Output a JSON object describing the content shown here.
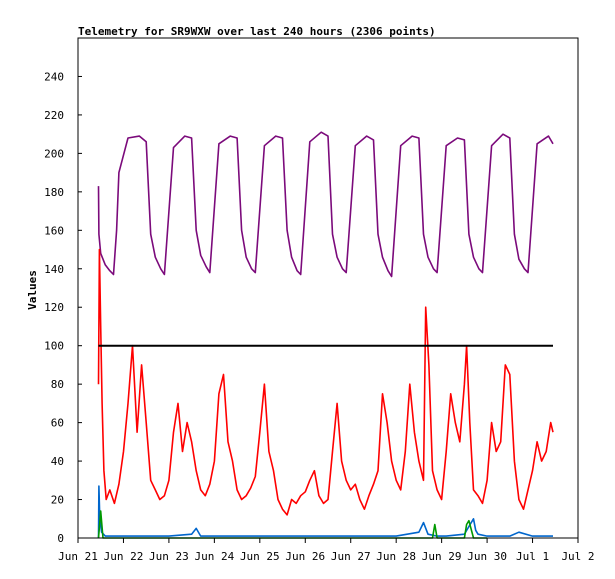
{
  "chart_data": {
    "type": "line",
    "title": "Telemetry for SR9WXW over last 240 hours (2306 points)",
    "xlabel": "",
    "ylabel": "Values",
    "ylim": [
      0,
      260
    ],
    "yticks": [
      0,
      20,
      40,
      60,
      80,
      100,
      120,
      140,
      160,
      180,
      200,
      220,
      240
    ],
    "xlim_days": [
      0,
      11
    ],
    "xticks": [
      "Jun 21",
      "Jun 22",
      "Jun 23",
      "Jun 24",
      "Jun 25",
      "Jun 26",
      "Jun 27",
      "Jun 28",
      "Jun 29",
      "Jun 30",
      "Jul 1",
      "Jul 2"
    ],
    "grid": false,
    "legend": "none",
    "series": [
      {
        "color": "#7b0a7b",
        "x_days": [
          0.45,
          0.46,
          0.5,
          0.6,
          0.7,
          0.78,
          0.85,
          0.9,
          1.1,
          1.35,
          1.5,
          1.6,
          1.7,
          1.82,
          1.9,
          2.1,
          2.35,
          2.5,
          2.6,
          2.7,
          2.82,
          2.9,
          3.1,
          3.35,
          3.5,
          3.6,
          3.7,
          3.82,
          3.9,
          4.1,
          4.35,
          4.5,
          4.6,
          4.7,
          4.82,
          4.9,
          5.1,
          5.35,
          5.5,
          5.6,
          5.7,
          5.82,
          5.9,
          6.1,
          6.35,
          6.5,
          6.6,
          6.7,
          6.82,
          6.9,
          7.1,
          7.35,
          7.5,
          7.6,
          7.7,
          7.82,
          7.9,
          8.1,
          8.35,
          8.5,
          8.6,
          8.7,
          8.82,
          8.9,
          9.1,
          9.35,
          9.5,
          9.6,
          9.7,
          9.82,
          9.9,
          10.1,
          10.35,
          10.4,
          10.45
        ],
        "values": [
          183,
          158,
          148,
          142,
          139,
          137,
          160,
          190,
          208,
          209,
          206,
          158,
          146,
          140,
          137,
          203,
          209,
          208,
          160,
          147,
          141,
          138,
          205,
          209,
          208,
          160,
          146,
          140,
          138,
          204,
          209,
          208,
          160,
          146,
          139,
          137,
          206,
          211,
          209,
          158,
          146,
          140,
          138,
          204,
          209,
          207,
          158,
          146,
          139,
          136,
          204,
          209,
          208,
          158,
          146,
          140,
          138,
          204,
          208,
          207,
          158,
          146,
          140,
          138,
          204,
          210,
          208,
          158,
          145,
          140,
          138,
          205,
          209,
          207,
          205
        ]
      },
      {
        "color": "#ff0000",
        "x_days": [
          0.45,
          0.47,
          0.5,
          0.53,
          0.57,
          0.62,
          0.7,
          0.8,
          0.9,
          1.0,
          1.1,
          1.2,
          1.3,
          1.4,
          1.5,
          1.6,
          1.7,
          1.8,
          1.9,
          2.0,
          2.1,
          2.2,
          2.3,
          2.4,
          2.5,
          2.6,
          2.7,
          2.8,
          2.9,
          3.0,
          3.1,
          3.2,
          3.3,
          3.4,
          3.5,
          3.6,
          3.7,
          3.8,
          3.9,
          4.0,
          4.1,
          4.2,
          4.3,
          4.4,
          4.5,
          4.6,
          4.7,
          4.8,
          4.9,
          5.0,
          5.1,
          5.2,
          5.3,
          5.4,
          5.5,
          5.6,
          5.7,
          5.8,
          5.9,
          6.0,
          6.1,
          6.2,
          6.3,
          6.4,
          6.5,
          6.6,
          6.7,
          6.8,
          6.9,
          7.0,
          7.1,
          7.2,
          7.3,
          7.4,
          7.5,
          7.6,
          7.65,
          7.72,
          7.8,
          7.9,
          8.0,
          8.1,
          8.2,
          8.3,
          8.4,
          8.5,
          8.55,
          8.62,
          8.7,
          8.8,
          8.9,
          9.0,
          9.1,
          9.2,
          9.3,
          9.4,
          9.5,
          9.6,
          9.7,
          9.8,
          9.9,
          10.0,
          10.1,
          10.2,
          10.3,
          10.4,
          10.45
        ],
        "values": [
          80,
          150,
          110,
          70,
          35,
          20,
          25,
          18,
          28,
          45,
          70,
          100,
          55,
          90,
          60,
          30,
          25,
          20,
          22,
          30,
          55,
          70,
          45,
          60,
          50,
          35,
          25,
          22,
          28,
          40,
          75,
          85,
          50,
          40,
          25,
          20,
          22,
          26,
          32,
          55,
          80,
          45,
          35,
          20,
          15,
          12,
          20,
          18,
          22,
          24,
          30,
          35,
          22,
          18,
          20,
          45,
          70,
          40,
          30,
          25,
          28,
          20,
          15,
          22,
          28,
          35,
          75,
          60,
          40,
          30,
          25,
          45,
          80,
          55,
          40,
          30,
          120,
          90,
          35,
          25,
          20,
          45,
          75,
          60,
          50,
          80,
          100,
          60,
          25,
          22,
          18,
          30,
          60,
          45,
          50,
          90,
          85,
          40,
          20,
          15,
          25,
          35,
          50,
          40,
          45,
          60,
          55
        ]
      },
      {
        "color": "#000000",
        "x_days": [
          0.45,
          10.45
        ],
        "values": [
          100,
          100
        ]
      },
      {
        "color": "#0066cc",
        "x_days": [
          0.45,
          0.46,
          0.48,
          0.52,
          0.6,
          1.0,
          1.5,
          2.0,
          2.5,
          2.6,
          2.7,
          3.0,
          4.0,
          5.0,
          6.0,
          7.0,
          7.5,
          7.6,
          7.7,
          7.9,
          8.1,
          8.5,
          8.6,
          8.7,
          8.75,
          8.8,
          9.0,
          9.5,
          9.7,
          10.0,
          10.45
        ],
        "values": [
          0,
          27,
          10,
          3,
          1,
          1,
          1,
          1,
          2,
          5,
          1,
          1,
          1,
          1,
          1,
          1,
          3,
          8,
          2,
          1,
          1,
          2,
          6,
          10,
          4,
          2,
          1,
          1,
          3,
          1,
          1
        ]
      },
      {
        "color": "#009900",
        "x_days": [
          0.45,
          0.48,
          0.5,
          0.55,
          7.8,
          7.85,
          7.9,
          8.1,
          8.5,
          8.55,
          8.6,
          8.7,
          8.75,
          9.0
        ],
        "values": [
          0,
          8,
          14,
          0,
          0,
          7,
          0,
          0,
          0,
          7,
          9,
          0,
          0,
          0
        ]
      }
    ]
  }
}
